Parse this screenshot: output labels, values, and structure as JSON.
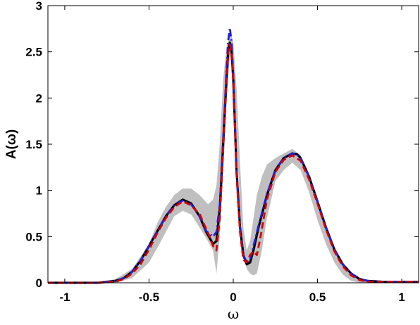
{
  "chart_data": {
    "type": "line",
    "title": "",
    "xlabel": "ω",
    "ylabel": "A(ω)",
    "xlim": [
      -1.1,
      1.1
    ],
    "ylim": [
      0,
      3
    ],
    "xticks": [
      "-1",
      "-0.5",
      "0",
      "0.5",
      "1"
    ],
    "xtick_values": [
      -1,
      -0.5,
      0,
      0.5,
      1
    ],
    "yticks": [
      "0",
      "0.5",
      "1",
      "1.5",
      "2",
      "2.5",
      "3"
    ],
    "ytick_values": [
      0,
      0.5,
      1,
      1.5,
      2,
      2.5,
      3
    ],
    "grid": false,
    "legend": "none",
    "band": {
      "color": "#bfbfbf",
      "x": [
        -1.1,
        -0.8,
        -0.7,
        -0.6,
        -0.5,
        -0.45,
        -0.4,
        -0.35,
        -0.3,
        -0.25,
        -0.2,
        -0.15,
        -0.12,
        -0.1,
        -0.08,
        -0.06,
        -0.04,
        -0.02,
        0.0,
        0.02,
        0.04,
        0.06,
        0.08,
        0.1,
        0.12,
        0.14,
        0.17,
        0.2,
        0.25,
        0.3,
        0.35,
        0.4,
        0.45,
        0.5,
        0.55,
        0.6,
        0.65,
        0.7,
        0.75,
        0.8,
        0.9,
        1.1
      ],
      "lower": [
        0,
        0,
        0.0,
        0.05,
        0.22,
        0.38,
        0.55,
        0.72,
        0.78,
        0.74,
        0.6,
        0.45,
        0.35,
        0.1,
        0.5,
        1.2,
        2.0,
        2.45,
        2.3,
        1.6,
        0.8,
        0.3,
        0.15,
        0.1,
        0.08,
        0.1,
        0.35,
        0.7,
        1.1,
        1.22,
        1.3,
        1.22,
        0.98,
        0.68,
        0.42,
        0.22,
        0.09,
        0.02,
        0.0,
        0,
        0,
        0
      ],
      "upper": [
        0.01,
        0.01,
        0.04,
        0.15,
        0.42,
        0.65,
        0.82,
        0.95,
        1.02,
        1.02,
        0.95,
        0.85,
        0.9,
        1.05,
        1.5,
        2.2,
        2.55,
        2.7,
        2.62,
        2.1,
        1.3,
        0.6,
        0.35,
        0.45,
        0.7,
        0.95,
        1.15,
        1.28,
        1.35,
        1.4,
        1.45,
        1.38,
        1.15,
        0.88,
        0.62,
        0.38,
        0.2,
        0.08,
        0.03,
        0.01,
        0.01,
        0.01
      ]
    },
    "series": [
      {
        "color": "#000000",
        "style": "solid",
        "x": [
          -1.1,
          -0.8,
          -0.7,
          -0.65,
          -0.6,
          -0.55,
          -0.5,
          -0.45,
          -0.4,
          -0.35,
          -0.3,
          -0.25,
          -0.2,
          -0.16,
          -0.12,
          -0.1,
          -0.08,
          -0.06,
          -0.04,
          -0.03,
          -0.02,
          -0.01,
          0.0,
          0.01,
          0.02,
          0.04,
          0.06,
          0.08,
          0.1,
          0.12,
          0.15,
          0.2,
          0.25,
          0.3,
          0.35,
          0.38,
          0.4,
          0.45,
          0.5,
          0.55,
          0.6,
          0.65,
          0.7,
          0.75,
          0.8,
          0.9,
          1.1
        ],
        "y": [
          0.0,
          0.0,
          0.02,
          0.05,
          0.12,
          0.24,
          0.4,
          0.56,
          0.72,
          0.84,
          0.9,
          0.86,
          0.72,
          0.55,
          0.42,
          0.45,
          0.8,
          1.5,
          2.2,
          2.5,
          2.6,
          2.5,
          2.2,
          1.7,
          1.2,
          0.6,
          0.3,
          0.2,
          0.22,
          0.35,
          0.6,
          0.95,
          1.22,
          1.35,
          1.4,
          1.39,
          1.35,
          1.15,
          0.88,
          0.6,
          0.36,
          0.2,
          0.1,
          0.04,
          0.02,
          0.01,
          0.01
        ]
      },
      {
        "color": "#d40000",
        "style": "dashed",
        "x": [
          -1.1,
          -0.8,
          -0.7,
          -0.65,
          -0.6,
          -0.55,
          -0.5,
          -0.45,
          -0.4,
          -0.35,
          -0.3,
          -0.25,
          -0.22,
          -0.2,
          -0.17,
          -0.14,
          -0.12,
          -0.1,
          -0.08,
          -0.06,
          -0.04,
          -0.03,
          -0.02,
          -0.01,
          0.0,
          0.01,
          0.02,
          0.04,
          0.06,
          0.08,
          0.1,
          0.12,
          0.14,
          0.16,
          0.2,
          0.25,
          0.3,
          0.35,
          0.4,
          0.45,
          0.5,
          0.55,
          0.6,
          0.65,
          0.7,
          0.75,
          0.8,
          0.9,
          1.1
        ],
        "y": [
          0.0,
          0.0,
          0.01,
          0.04,
          0.1,
          0.2,
          0.36,
          0.54,
          0.7,
          0.82,
          0.88,
          0.84,
          0.78,
          0.75,
          0.62,
          0.5,
          0.4,
          0.35,
          0.7,
          1.45,
          2.15,
          2.48,
          2.58,
          2.5,
          2.2,
          1.7,
          1.15,
          0.55,
          0.25,
          0.22,
          0.3,
          0.34,
          0.3,
          0.48,
          0.9,
          1.2,
          1.33,
          1.38,
          1.32,
          1.12,
          0.86,
          0.58,
          0.34,
          0.18,
          0.08,
          0.03,
          0.01,
          0.01,
          0.01
        ]
      },
      {
        "color": "#1f1fd6",
        "style": "dashdot",
        "x": [
          -1.1,
          -0.8,
          -0.7,
          -0.65,
          -0.6,
          -0.55,
          -0.5,
          -0.45,
          -0.4,
          -0.35,
          -0.3,
          -0.25,
          -0.2,
          -0.16,
          -0.12,
          -0.1,
          -0.08,
          -0.06,
          -0.04,
          -0.03,
          -0.02,
          -0.01,
          0.0,
          0.01,
          0.02,
          0.04,
          0.06,
          0.08,
          0.1,
          0.12,
          0.15,
          0.2,
          0.25,
          0.3,
          0.35,
          0.38,
          0.4,
          0.45,
          0.5,
          0.55,
          0.6,
          0.65,
          0.7,
          0.75,
          0.8,
          0.9,
          1.1
        ],
        "y": [
          0.0,
          0.0,
          0.02,
          0.05,
          0.12,
          0.24,
          0.4,
          0.56,
          0.72,
          0.84,
          0.89,
          0.85,
          0.72,
          0.56,
          0.5,
          0.55,
          0.85,
          1.55,
          2.3,
          2.62,
          2.76,
          2.6,
          2.25,
          1.7,
          1.2,
          0.6,
          0.3,
          0.22,
          0.25,
          0.4,
          0.62,
          0.96,
          1.22,
          1.35,
          1.4,
          1.39,
          1.35,
          1.15,
          0.88,
          0.6,
          0.36,
          0.2,
          0.1,
          0.04,
          0.02,
          0.01,
          0.01
        ]
      }
    ]
  }
}
